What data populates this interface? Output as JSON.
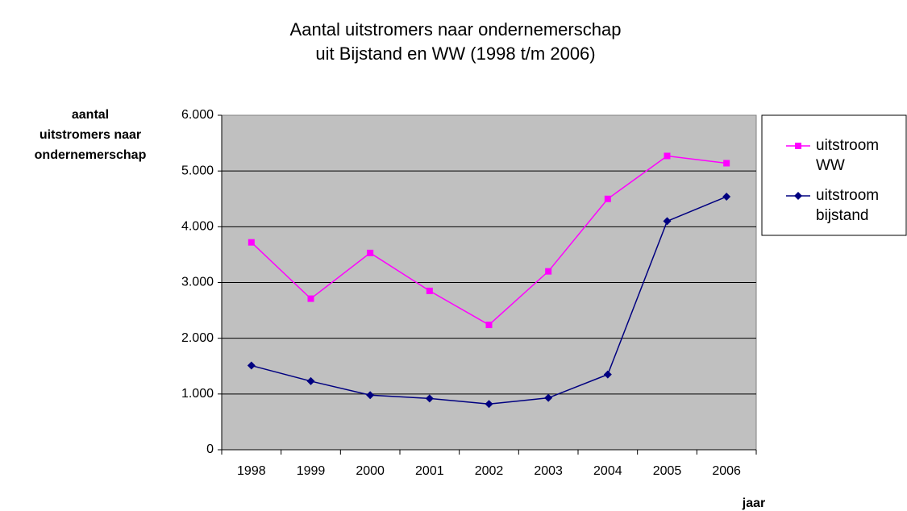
{
  "chart_data": {
    "type": "line",
    "title": [
      "Aantal uitstromers naar ondernemerschap",
      "uit Bijstand en WW (1998 t/m 2006)"
    ],
    "y_label": [
      "aantal",
      "uitstromers naar",
      "ondernemerschap"
    ],
    "x_label": "jaar",
    "categories": [
      "1998",
      "1999",
      "2000",
      "2001",
      "2002",
      "2003",
      "2004",
      "2005",
      "2006"
    ],
    "series": [
      {
        "name": "uitstroom WW",
        "color": "#ff00ff",
        "marker": "square",
        "values": [
          3720,
          2710,
          3530,
          2850,
          2240,
          3200,
          4500,
          5270,
          5140
        ]
      },
      {
        "name": "uitstroom bijstand",
        "color": "#000080",
        "marker": "diamond",
        "values": [
          1510,
          1230,
          980,
          920,
          820,
          930,
          1350,
          4100,
          4540
        ]
      }
    ],
    "ylim": [
      0,
      6000
    ],
    "yticks": [
      0,
      {
        "value": 1000,
        "label": "1.000"
      },
      {
        "value": 2000,
        "label": "2.000"
      },
      {
        "value": 3000,
        "label": "3.000"
      },
      {
        "value": 4000,
        "label": "4.000"
      },
      {
        "value": 5000,
        "label": "5.000"
      },
      {
        "value": 6000,
        "label": "6.000"
      }
    ],
    "grid": true,
    "legend": "right"
  }
}
